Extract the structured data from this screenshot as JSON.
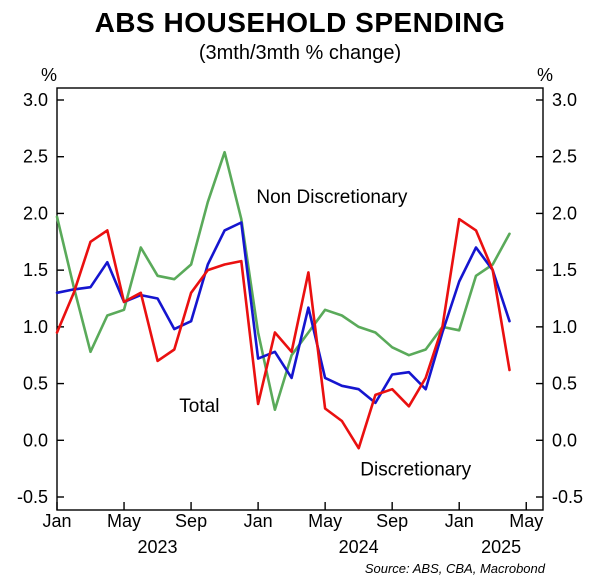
{
  "title": "ABS HOUSEHOLD SPENDING",
  "subtitle": "(3mth/3mth % change)",
  "source": "Source: ABS, CBA, Macrobond",
  "colors": {
    "total": "#1515cf",
    "non_discretionary": "#5aaa5a",
    "discretionary": "#ea1010",
    "axis": "#000000"
  },
  "chart_data": {
    "type": "line",
    "title": "ABS HOUSEHOLD SPENDING",
    "subtitle": "(3mth/3mth % change)",
    "ylabel": "%",
    "grid": false,
    "legend_position": "inline-annotations",
    "ylim": [
      -0.5,
      3.0
    ],
    "y_ticks": [
      "3.0",
      "2.5",
      "2.0",
      "1.5",
      "1.0",
      "0.5",
      "0.0",
      "-0.5"
    ],
    "x_axis_start": "Jan 2023",
    "x_axis_end": "May 2025",
    "x_ticks": [
      {
        "label": "Jan",
        "month_index": 0
      },
      {
        "label": "May",
        "month_index": 4
      },
      {
        "label": "Sep",
        "month_index": 8
      },
      {
        "label": "Jan",
        "month_index": 12
      },
      {
        "label": "May",
        "month_index": 16
      },
      {
        "label": "Sep",
        "month_index": 20
      },
      {
        "label": "Jan",
        "month_index": 24
      },
      {
        "label": "May",
        "month_index": 28
      }
    ],
    "year_labels": [
      {
        "label": "2023",
        "month_index": 6
      },
      {
        "label": "2024",
        "month_index": 18
      },
      {
        "label": "2025",
        "month_index": 26.5
      }
    ],
    "x_months": [
      "Jan 2023",
      "Feb 2023",
      "Mar 2023",
      "Apr 2023",
      "May 2023",
      "Jun 2023",
      "Jul 2023",
      "Aug 2023",
      "Sep 2023",
      "Oct 2023",
      "Nov 2023",
      "Dec 2023",
      "Jan 2024",
      "Feb 2024",
      "Mar 2024",
      "Apr 2024",
      "May 2024",
      "Jun 2024",
      "Jul 2024",
      "Aug 2024",
      "Sep 2024",
      "Oct 2024",
      "Nov 2024",
      "Dec 2024",
      "Jan 2025",
      "Feb 2025",
      "Mar 2025",
      "Apr 2025"
    ],
    "series": [
      {
        "name": "Non Discretionary",
        "color_key": "non_discretionary",
        "annotation": {
          "text": "Non Discretionary",
          "month": 11.9,
          "value": 2.09
        },
        "values": [
          1.97,
          1.35,
          0.78,
          1.1,
          1.15,
          1.7,
          1.45,
          1.42,
          1.55,
          2.1,
          2.54,
          1.95,
          0.95,
          0.27,
          0.75,
          0.95,
          1.15,
          1.1,
          1.0,
          0.95,
          0.82,
          0.75,
          0.8,
          1.0,
          0.97,
          1.45,
          1.55,
          1.82
        ]
      },
      {
        "name": "Total",
        "color_key": "total",
        "annotation": {
          "text": "Total",
          "month": 7.3,
          "value": 0.25
        },
        "values": [
          1.3,
          1.33,
          1.35,
          1.57,
          1.22,
          1.28,
          1.25,
          0.98,
          1.05,
          1.55,
          1.85,
          1.92,
          0.72,
          0.78,
          0.55,
          1.17,
          0.55,
          0.48,
          0.45,
          0.33,
          0.58,
          0.6,
          0.45,
          0.95,
          1.4,
          1.7,
          1.5,
          1.05
        ]
      },
      {
        "name": "Discretionary",
        "color_key": "discretionary",
        "annotation": {
          "text": "Discretionary",
          "month": 18.1,
          "value": -0.31
        },
        "values": [
          0.95,
          1.3,
          1.75,
          1.85,
          1.22,
          1.3,
          0.7,
          0.8,
          1.3,
          1.5,
          1.55,
          1.58,
          0.32,
          0.95,
          0.78,
          1.48,
          0.28,
          0.17,
          -0.07,
          0.4,
          0.45,
          0.3,
          0.55,
          1.0,
          1.95,
          1.85,
          1.5,
          0.62
        ]
      }
    ]
  }
}
